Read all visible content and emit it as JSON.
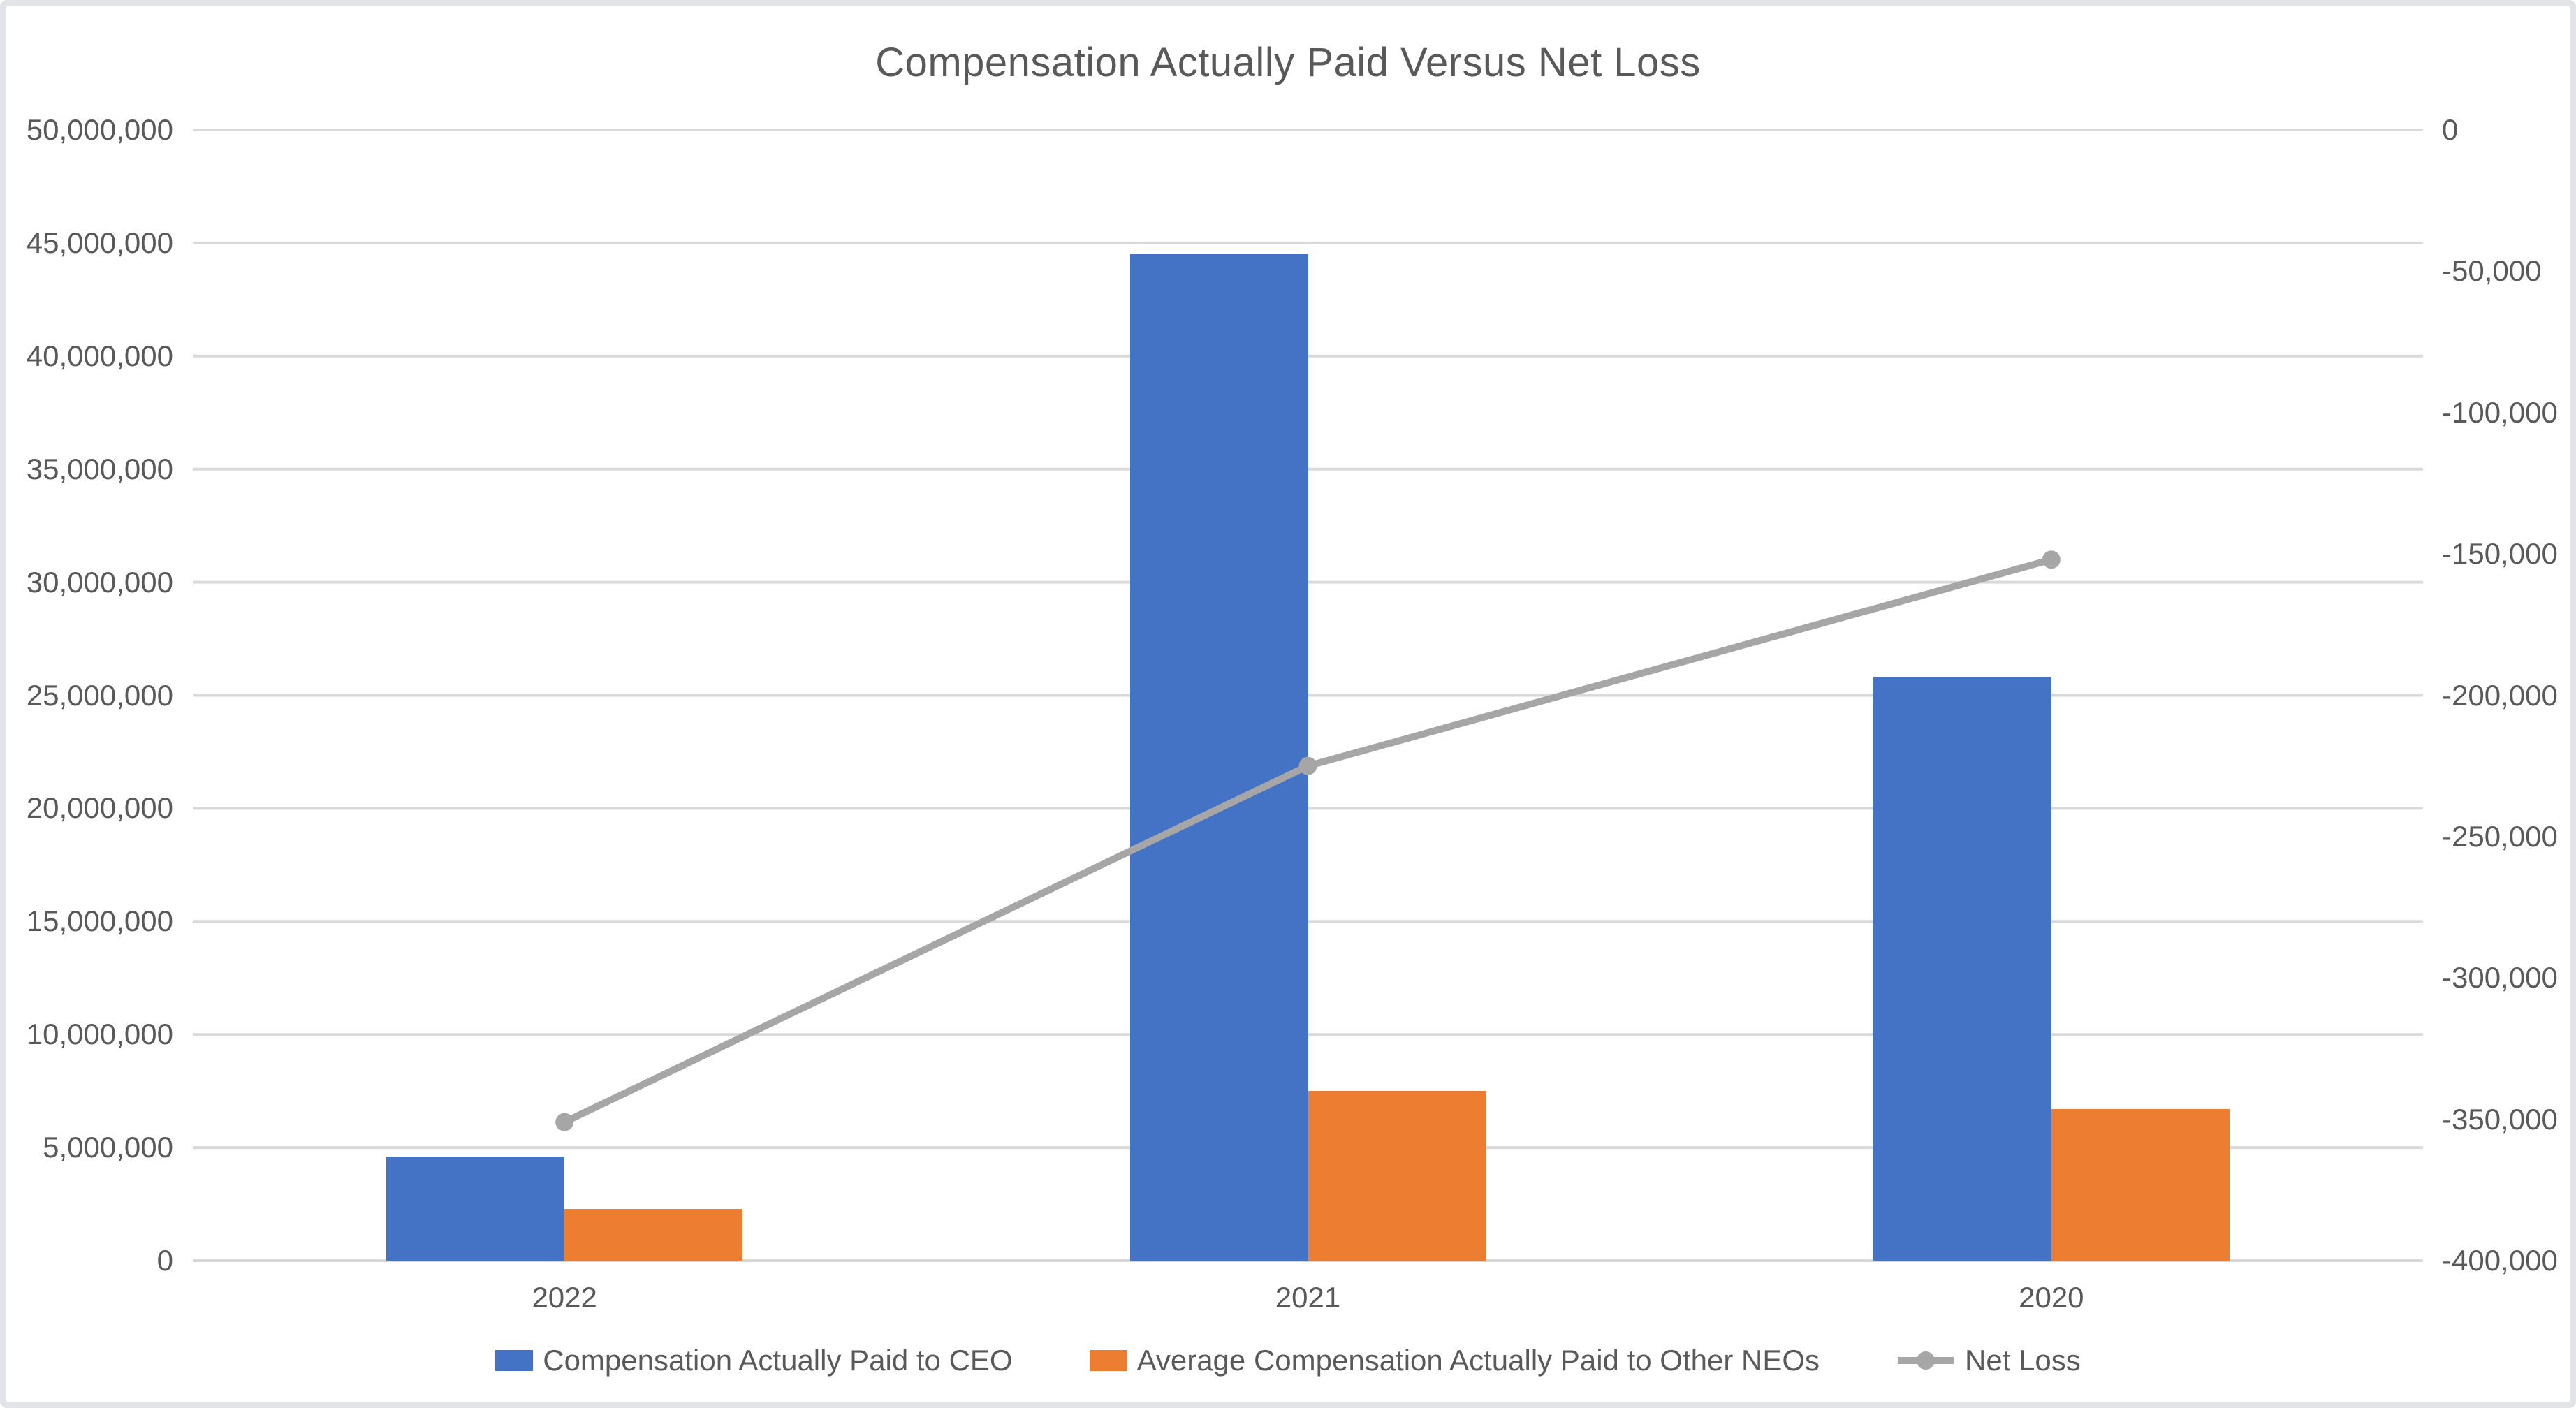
{
  "title": "Compensation Actually Paid Versus Net Loss",
  "colors": {
    "ceo_bar": "#4472C4",
    "neo_bar": "#ED7D31",
    "net_loss_line": "#A6A6A6",
    "gridline": "#D9D9D9",
    "text": "#595959"
  },
  "chart_data": {
    "type": "combo-bar-line",
    "title": "Compensation Actually Paid Versus Net Loss",
    "categories": [
      "2022",
      "2021",
      "2020"
    ],
    "series": [
      {
        "name": "Compensation Actually Paid to CEO",
        "type": "bar",
        "axis": "left",
        "color": "#4472C4",
        "values": [
          4600000,
          44500000,
          25800000
        ]
      },
      {
        "name": "Average Compensation Actually Paid to Other NEOs",
        "type": "bar",
        "axis": "left",
        "color": "#ED7D31",
        "values": [
          2300000,
          7500000,
          6700000
        ]
      },
      {
        "name": "Net Loss",
        "type": "line",
        "axis": "right",
        "color": "#A6A6A6",
        "values": [
          -351000,
          -225000,
          -152000
        ]
      }
    ],
    "left_axis": {
      "min": 0,
      "max": 50000000,
      "step": 5000000,
      "tick_labels": [
        "50,000,000",
        "45,000,000",
        "40,000,000",
        "35,000,000",
        "30,000,000",
        "25,000,000",
        "20,000,000",
        "15,000,000",
        "10,000,000",
        "5,000,000",
        "0"
      ]
    },
    "right_axis": {
      "min": -400000,
      "max": 0,
      "step": 50000,
      "tick_labels": [
        "0",
        "-50,000",
        "-100,000",
        "-150,000",
        "-200,000",
        "-250,000",
        "-300,000",
        "-350,000",
        "-400,000"
      ]
    },
    "grid": "horizontal",
    "legend_position": "bottom"
  }
}
